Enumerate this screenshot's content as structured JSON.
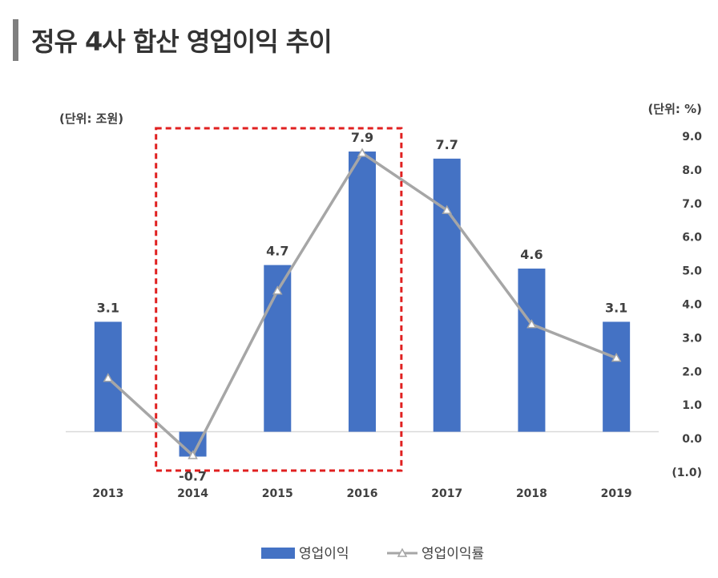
{
  "title": "정유 4사 합산 영업이익 추이",
  "left_unit": "(단위: 조원)",
  "right_unit": "(단위: %)",
  "colors": {
    "bar": "#4472c4",
    "line": "#a6a6a6",
    "highlight_box": "#e02020",
    "negative_tick": "#c00000"
  },
  "chart_data": {
    "type": "bar",
    "categories": [
      "2013",
      "2014",
      "2015",
      "2016",
      "2017",
      "2018",
      "2019"
    ],
    "series": [
      {
        "name": "영업이익",
        "type": "bar",
        "axis": "left",
        "values": [
          3.1,
          -0.7,
          4.7,
          7.9,
          7.7,
          4.6,
          3.1
        ],
        "labels": [
          "3.1",
          "-0.7",
          "4.7",
          "7.9",
          "7.7",
          "4.6",
          "3.1"
        ]
      },
      {
        "name": "영업이익률",
        "type": "line",
        "axis": "right",
        "values": [
          1.8,
          -0.5,
          4.4,
          8.5,
          6.8,
          3.4,
          2.4
        ]
      }
    ],
    "y_right_ticks": [
      "9.0",
      "8.0",
      "7.0",
      "6.0",
      "5.0",
      "4.0",
      "3.0",
      "2.0",
      "1.0",
      "0.0",
      "(1.0)"
    ],
    "y_right_range": [
      -1.0,
      9.0
    ],
    "y_left_range": [
      -1.14,
      8.33
    ],
    "highlight_categories": [
      "2014",
      "2015",
      "2016"
    ],
    "legend": {
      "position": "bottom"
    }
  }
}
